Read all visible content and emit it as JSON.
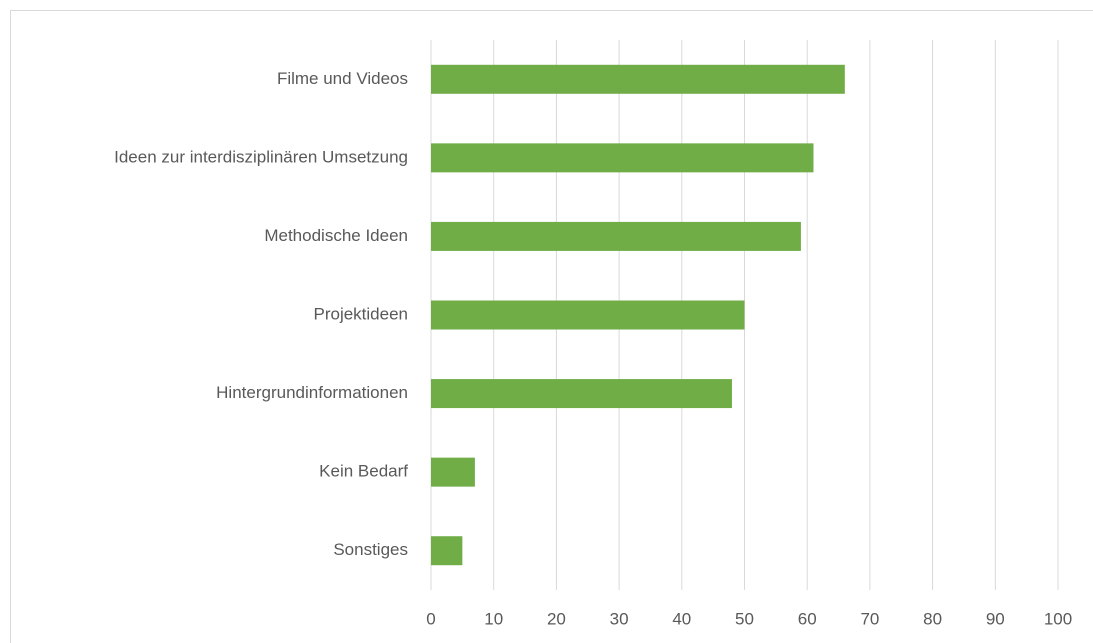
{
  "chart_data": {
    "type": "bar",
    "orientation": "horizontal",
    "categories": [
      "Filme und Videos",
      "Ideen zur interdisziplinären Umsetzung",
      "Methodische Ideen",
      "Projektideen",
      "Hintergrundinformationen",
      "Kein Bedarf",
      "Sonstiges"
    ],
    "values": [
      66,
      61,
      59,
      50,
      48,
      7,
      5
    ],
    "color": "#70ad47",
    "xlim": [
      0,
      100
    ],
    "xticks": [
      0,
      10,
      20,
      30,
      40,
      50,
      60,
      70,
      80,
      90,
      100
    ],
    "grid": true
  }
}
